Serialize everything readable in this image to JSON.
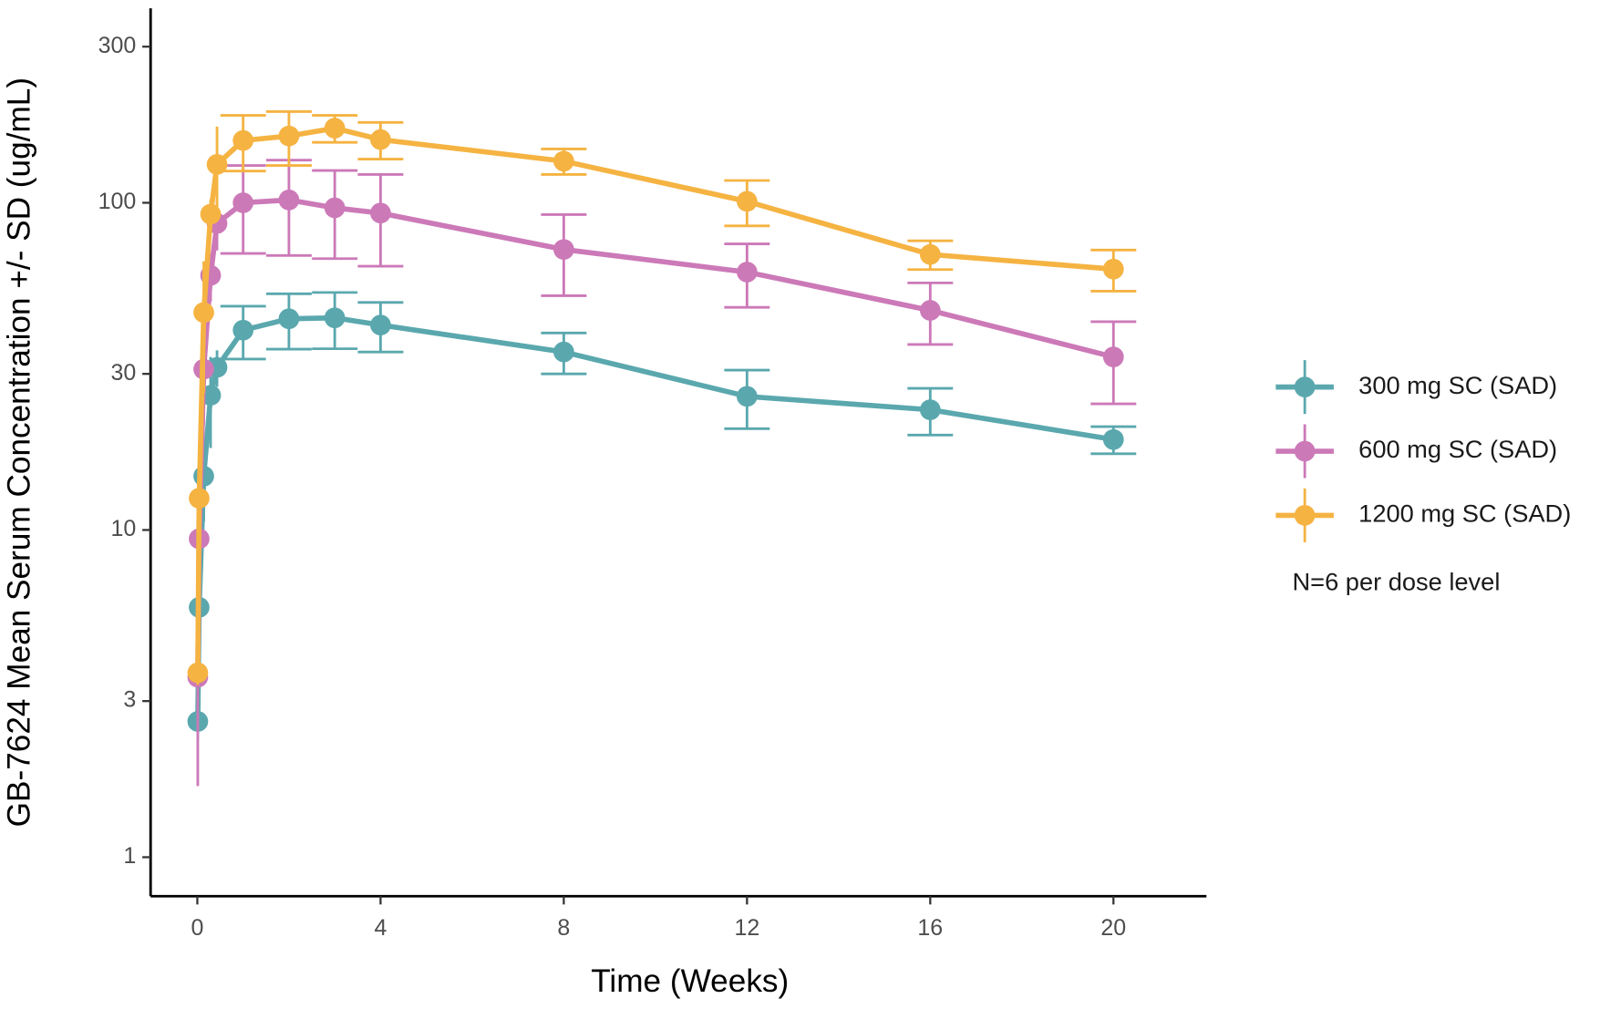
{
  "chart_data": {
    "type": "line",
    "x_label": "Time (Weeks)",
    "y_label": "GB-7624 Mean Serum Concentration +/- SD (ug/mL)",
    "x": [
      0.01,
      0.04,
      0.14,
      0.29,
      0.43,
      1,
      2,
      3,
      4,
      8,
      12,
      16,
      20
    ],
    "series": [
      {
        "name": "300 mg SC (SAD)",
        "color": "#5aa8ae",
        "values": [
          2.6,
          5.8,
          14.6,
          25.8,
          31.4,
          40.8,
          44.2,
          44.5,
          42.3,
          35,
          25.6,
          23.3,
          18.9
        ],
        "errors": [
          0.3,
          1,
          4,
          8,
          4,
          7.5,
          8.5,
          8.7,
          7.3,
          5,
          5.2,
          3.8,
          1.8
        ]
      },
      {
        "name": "600 mg SC (SAD)",
        "color": "#cc79b8",
        "values": [
          3.55,
          9.4,
          31,
          60,
          86.5,
          100,
          102,
          96.5,
          93,
          72,
          61.4,
          46.9,
          33.8
        ],
        "errors": [
          1.9,
          3,
          10,
          10,
          15,
          30,
          33,
          29,
          29,
          20,
          13.5,
          10,
          9.5
        ]
      },
      {
        "name": "1200 mg SC (SAD)",
        "color": "#f5b342",
        "values": [
          3.66,
          12.5,
          46.2,
          92.3,
          131,
          155,
          160,
          169,
          156,
          134,
          101,
          69.5,
          62.7
        ],
        "errors": [
          0.3,
          5,
          20,
          10,
          40,
          30,
          30,
          16,
          20,
          12,
          16,
          7,
          9
        ]
      }
    ],
    "note": "N=6 per dose level",
    "xlim": [
      -1.02,
      22.03
    ],
    "xticks": [
      0,
      4,
      8,
      12,
      16,
      20
    ],
    "ylim": [
      0.76,
      393
    ],
    "yticks": [
      1,
      3,
      10,
      30,
      100,
      300
    ],
    "y_scale": "log",
    "grid": false,
    "legend": "right"
  }
}
